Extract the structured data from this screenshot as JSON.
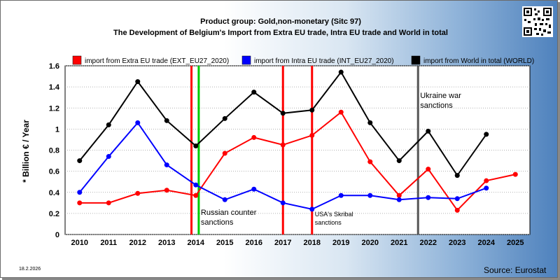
{
  "chart_data": {
    "type": "line",
    "title": "Product group: Gold,non-monetary (Sitc 97)",
    "subtitle": "The Development of Belgium's Import from Extra EU trade, Intra EU trade and World in total",
    "xlabel": "",
    "ylabel": "* Billion € / Year",
    "categories": [
      "2010",
      "2011",
      "2012",
      "2013",
      "2014",
      "2015",
      "2016",
      "2017",
      "2018",
      "2019",
      "2020",
      "2021",
      "2022",
      "2023",
      "2024",
      "2025"
    ],
    "ylim": [
      0,
      1.6
    ],
    "yticks": [
      "0",
      "0.2",
      "0.4",
      "0.6",
      "0.8",
      "1",
      "1.2",
      "1.4",
      "1.6"
    ],
    "grid": true,
    "legend_position": "top",
    "series": [
      {
        "name": "import from Extra EU trade (EXT_EU27_2020)",
        "color": "#ff0000",
        "values": [
          0.3,
          0.3,
          0.39,
          0.42,
          0.37,
          0.77,
          0.92,
          0.85,
          0.94,
          1.16,
          0.69,
          0.37,
          0.62,
          0.23,
          0.51,
          0.57
        ]
      },
      {
        "name": "import from Intra EU trade (INT_EU27_2020)",
        "color": "#0000ff",
        "values": [
          0.4,
          0.74,
          1.06,
          0.66,
          0.47,
          0.33,
          0.43,
          0.3,
          0.24,
          0.37,
          0.37,
          0.33,
          0.35,
          0.34,
          0.44,
          null
        ]
      },
      {
        "name": "import from World in total (WORLD)",
        "color": "#000000",
        "values": [
          0.7,
          1.04,
          1.45,
          1.08,
          0.84,
          1.1,
          1.35,
          1.15,
          1.18,
          1.54,
          1.06,
          0.7,
          0.98,
          0.56,
          0.95,
          null
        ]
      }
    ],
    "events": [
      {
        "label": "",
        "x": 2013.85,
        "color": "#ff0000"
      },
      {
        "label": "Russian counter sanctions",
        "x": 2014.1,
        "color": "#00cc00"
      },
      {
        "label": "",
        "x": 2017.0,
        "color": "#ff0000"
      },
      {
        "label": "USA's Skribal sanctions",
        "x": 2018.0,
        "color": "#ff0000"
      },
      {
        "label": "Ukraine war sanctions",
        "x": 2021.65,
        "color": "#555555"
      }
    ]
  },
  "footer": {
    "date": "18.2.2026",
    "source": "Source: Eurostat"
  }
}
